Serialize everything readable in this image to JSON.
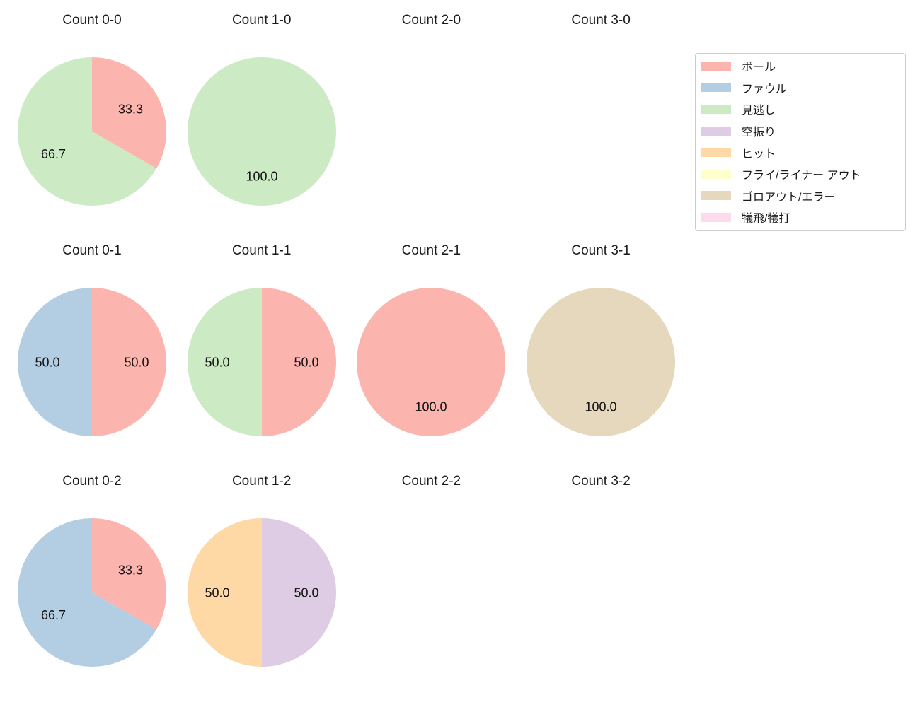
{
  "figure": {
    "background": "#ffffff",
    "text_color": "#1a1a1a"
  },
  "legend": {
    "border_color": "#cccccc",
    "items": [
      {
        "label": "ボール",
        "color": "#fbb4ae"
      },
      {
        "label": "ファウル",
        "color": "#b3cde3"
      },
      {
        "label": "見逃し",
        "color": "#ccebc5"
      },
      {
        "label": "空振り",
        "color": "#decbe4"
      },
      {
        "label": "ヒット",
        "color": "#fed9a6"
      },
      {
        "label": "フライ/ライナー アウト",
        "color": "#ffffcc"
      },
      {
        "label": "ゴロアウト/エラー",
        "color": "#e5d8bd"
      },
      {
        "label": "犠飛/犠打",
        "color": "#fddaec"
      }
    ]
  },
  "chart_data": {
    "type": "pie",
    "layout": "grid",
    "rows": 3,
    "cols": 4,
    "start_angle_deg": 90,
    "direction": "clockwise",
    "label_distance": 0.6,
    "legend_position": "upper right",
    "charts": [
      {
        "title": "Count 0-0",
        "slices": [
          {
            "category": "ボール",
            "value": 33.3,
            "label": "33.3",
            "color": "#fbb4ae"
          },
          {
            "category": "見逃し",
            "value": 66.7,
            "label": "66.7",
            "color": "#ccebc5"
          }
        ]
      },
      {
        "title": "Count 1-0",
        "slices": [
          {
            "category": "見逃し",
            "value": 100.0,
            "label": "100.0",
            "color": "#ccebc5"
          }
        ]
      },
      {
        "title": "Count 2-0",
        "slices": []
      },
      {
        "title": "Count 3-0",
        "slices": []
      },
      {
        "title": "Count 0-1",
        "slices": [
          {
            "category": "ボール",
            "value": 50.0,
            "label": "50.0",
            "color": "#fbb4ae"
          },
          {
            "category": "ファウル",
            "value": 50.0,
            "label": "50.0",
            "color": "#b3cde3"
          }
        ]
      },
      {
        "title": "Count 1-1",
        "slices": [
          {
            "category": "ボール",
            "value": 50.0,
            "label": "50.0",
            "color": "#fbb4ae"
          },
          {
            "category": "見逃し",
            "value": 50.0,
            "label": "50.0",
            "color": "#ccebc5"
          }
        ]
      },
      {
        "title": "Count 2-1",
        "slices": [
          {
            "category": "ボール",
            "value": 100.0,
            "label": "100.0",
            "color": "#fbb4ae"
          }
        ]
      },
      {
        "title": "Count 3-1",
        "slices": [
          {
            "category": "ゴロアウト/エラー",
            "value": 100.0,
            "label": "100.0",
            "color": "#e5d8bd"
          }
        ]
      },
      {
        "title": "Count 0-2",
        "slices": [
          {
            "category": "ボール",
            "value": 33.3,
            "label": "33.3",
            "color": "#fbb4ae"
          },
          {
            "category": "ファウル",
            "value": 66.7,
            "label": "66.7",
            "color": "#b3cde3"
          }
        ]
      },
      {
        "title": "Count 1-2",
        "slices": [
          {
            "category": "空振り",
            "value": 50.0,
            "label": "50.0",
            "color": "#decbe4"
          },
          {
            "category": "ヒット",
            "value": 50.0,
            "label": "50.0",
            "color": "#fed9a6"
          }
        ]
      },
      {
        "title": "Count 2-2",
        "slices": []
      },
      {
        "title": "Count 3-2",
        "slices": []
      }
    ]
  }
}
